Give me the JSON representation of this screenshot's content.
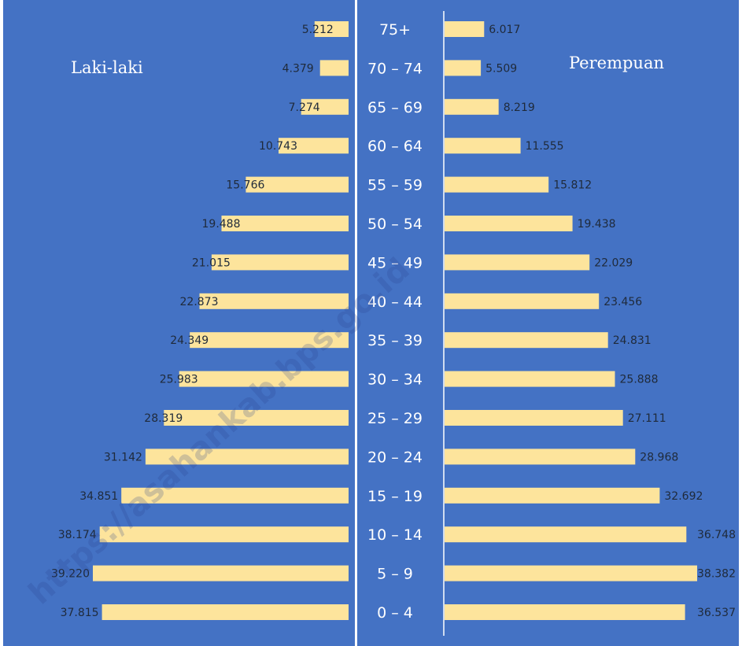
{
  "chart_data": {
    "type": "bar",
    "orientation": "horizontal",
    "layout": "population-pyramid",
    "categories": [
      "0 – 4",
      "5 – 9",
      "10 – 14",
      "15 – 19",
      "20 – 24",
      "25 – 29",
      "30 – 34",
      "35 – 39",
      "40 – 44",
      "45 – 49",
      "50 – 54",
      "55 – 59",
      "60 – 64",
      "65 – 69",
      "70 – 74",
      "75+"
    ],
    "series": [
      {
        "name": "Laki-laki",
        "side": "left",
        "values": [
          37815,
          39220,
          38174,
          34851,
          31142,
          28319,
          25983,
          24349,
          22873,
          21015,
          19488,
          15766,
          10743,
          7274,
          4379,
          5212
        ],
        "value_labels": [
          "37.815",
          "39.220",
          "38.174",
          "34.851",
          "31.142",
          "28.319",
          "25.983",
          "24.349",
          "22.873",
          "21.015",
          "19.488",
          "15.766",
          "10.743",
          "7.274",
          "4.379",
          "5.212"
        ]
      },
      {
        "name": "Perempuan",
        "side": "right",
        "values": [
          36537,
          38382,
          36748,
          32692,
          28968,
          27111,
          25888,
          24831,
          23456,
          22029,
          19438,
          15812,
          11555,
          8219,
          5509,
          6017
        ],
        "value_labels": [
          "36.537",
          "38.382",
          "36.748",
          "32.692",
          "28.968",
          "27.111",
          "25.888",
          "24.831",
          "23.456",
          "22.029",
          "19.438",
          "15.812",
          "11.555",
          "8.219",
          "5.509",
          "6.017"
        ]
      }
    ],
    "colors": {
      "background": "#4472c4",
      "bar": "#fde49c",
      "divider": "#ffffff",
      "label": "#1f2a3a",
      "age_label": "#ffffff"
    },
    "watermark": "https://asahankab.bps.go.id",
    "grid": false,
    "legend": "none"
  }
}
